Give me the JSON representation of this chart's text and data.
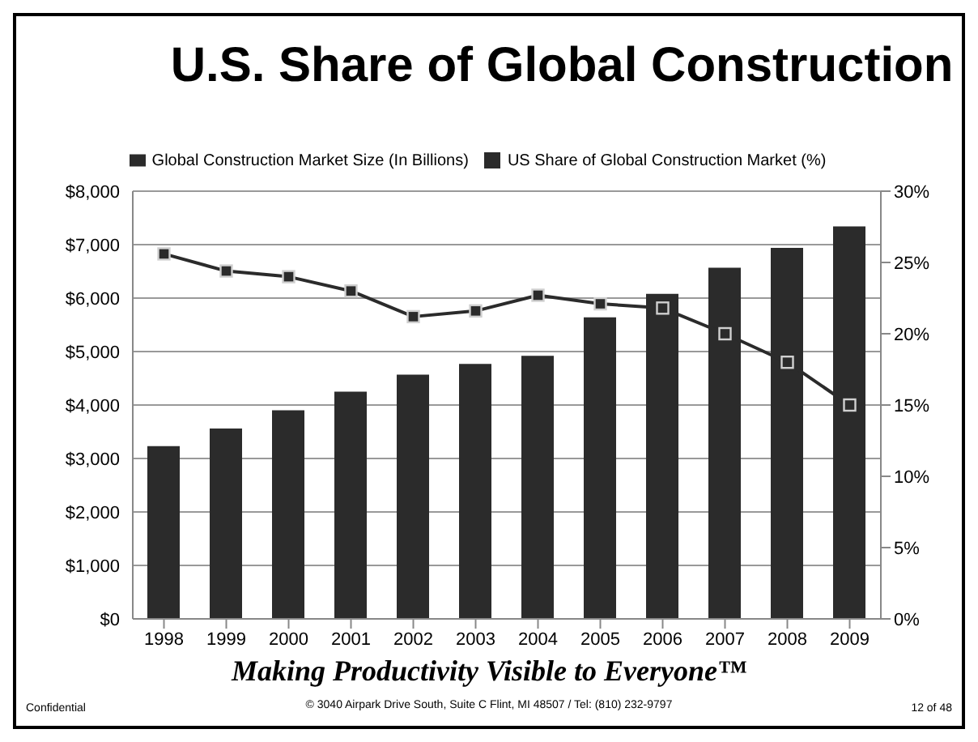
{
  "chart_data": {
    "type": "bar",
    "title": "U.S. Share of Global Construction",
    "categories": [
      "1998",
      "1999",
      "2000",
      "2001",
      "2002",
      "2003",
      "2004",
      "2005",
      "2006",
      "2007",
      "2008",
      "2009"
    ],
    "series": [
      {
        "name": "Global Construction Market Size (In Billions)",
        "color": "#2b2b2b",
        "values": [
          3230,
          3560,
          3900,
          4250,
          4570,
          4770,
          4920,
          5640,
          6080,
          6570,
          6940,
          7340
        ]
      },
      {
        "name": "US Share of Global Construction Market (%)",
        "type": "line",
        "axis": "y2",
        "color": "#2b2b2b",
        "marker": "square",
        "values": [
          25.6,
          24.4,
          24.0,
          23.0,
          21.2,
          21.6,
          22.7,
          22.1,
          21.8,
          20.0,
          18.0,
          15.0
        ]
      }
    ],
    "ylim": [
      0,
      8000
    ],
    "yticks": [
      {
        "value": 0,
        "label": "$0"
      },
      {
        "value": 1000,
        "label": "$1,000"
      },
      {
        "value": 2000,
        "label": "$2,000"
      },
      {
        "value": 3000,
        "label": "$3,000"
      },
      {
        "value": 4000,
        "label": "$4,000"
      },
      {
        "value": 5000,
        "label": "$5,000"
      },
      {
        "value": 6000,
        "label": "$6,000"
      },
      {
        "value": 7000,
        "label": "$7,000"
      },
      {
        "value": 8000,
        "label": "$8,000"
      }
    ],
    "y2lim": [
      0,
      30
    ],
    "y2ticks": [
      {
        "value": 0,
        "label": "0%"
      },
      {
        "value": 5,
        "label": "5%"
      },
      {
        "value": 10,
        "label": "10%"
      },
      {
        "value": 15,
        "label": "15%"
      },
      {
        "value": 20,
        "label": "20%"
      },
      {
        "value": 25,
        "label": "25%"
      },
      {
        "value": 30,
        "label": "30%"
      }
    ],
    "grid": "y",
    "legend": "top",
    "annotations": [
      "Making Productivity Visible to Everyone™",
      "Confidential",
      "© 3040 Airpark Drive South, Suite C  Flint, MI 48507 / Tel: (810) 232-9797",
      "12 of 48"
    ]
  }
}
